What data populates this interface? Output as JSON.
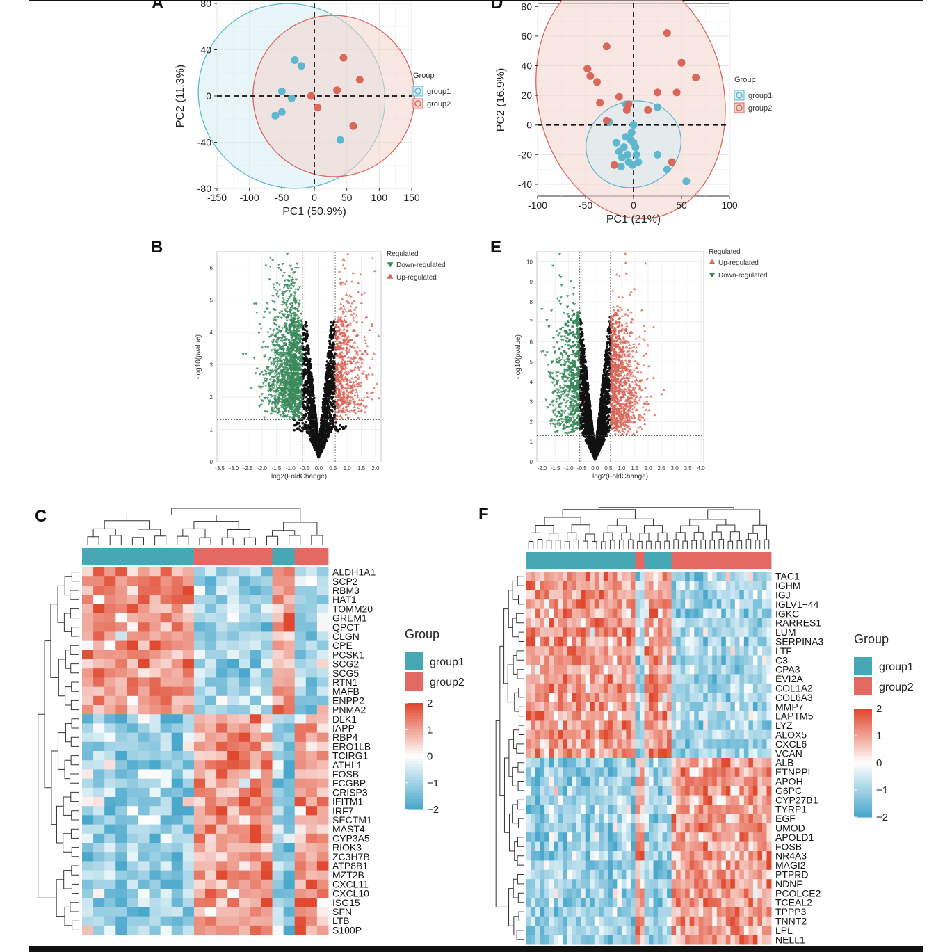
{
  "colors": {
    "group1": "#5fb7cf",
    "group2": "#d9675a",
    "group1_fill": "#d6eef4",
    "group2_fill": "#f4d4cd",
    "down": "#3a8a5c",
    "up": "#d9675a",
    "ns": "#111111",
    "heat_low": "#4aa8cc",
    "heat_mid": "#ffffff",
    "heat_high": "#e0492f",
    "bar_group1": "#47a8b5",
    "bar_group2": "#e26a63"
  },
  "chart_data": [
    {
      "panel": "A",
      "type": "scatter",
      "xlabel": "PC1 (50.9%)",
      "ylabel": "PC2 (11.3%)",
      "xlim": [
        -150,
        150
      ],
      "ylim": [
        -80,
        80
      ],
      "xticks": [
        "-150",
        "-100",
        "-50",
        "0",
        "50",
        "100",
        "150"
      ],
      "yticks": [
        "-80",
        "-40",
        "0",
        "40",
        "80"
      ],
      "legend": {
        "title": "Group",
        "entries": [
          "group1",
          "group2"
        ]
      },
      "series": [
        {
          "name": "group1",
          "points": [
            [
              -60,
              -17
            ],
            [
              -50,
              4
            ],
            [
              -50,
              -14
            ],
            [
              -35,
              -2
            ],
            [
              -30,
              31
            ],
            [
              -20,
              26
            ],
            [
              40,
              -38
            ]
          ]
        },
        {
          "name": "group2",
          "points": [
            [
              -5,
              0
            ],
            [
              5,
              -10
            ],
            [
              35,
              5
            ],
            [
              45,
              33
            ],
            [
              60,
              -26
            ],
            [
              70,
              14
            ]
          ]
        }
      ],
      "ellipses": [
        {
          "group": "group1",
          "center": [
            -35,
            0
          ],
          "rx": 140,
          "ry": 82,
          "angle": -52
        },
        {
          "group": "group2",
          "center": [
            30,
            0
          ],
          "rx": 124,
          "ry": 70,
          "angle": -58
        }
      ]
    },
    {
      "panel": "D",
      "type": "scatter",
      "xlabel": "PC1 (21%)",
      "ylabel": "PC2 (16.9%)",
      "xlim": [
        -100,
        100
      ],
      "ylim": [
        -48,
        82
      ],
      "xticks": [
        "-100",
        "-50",
        "0",
        "50",
        "100"
      ],
      "yticks": [
        "-40",
        "-20",
        "0",
        "20",
        "40",
        "60",
        "80"
      ],
      "legend": {
        "title": "Group",
        "entries": [
          "group1",
          "group2"
        ]
      },
      "series": [
        {
          "name": "group1",
          "points": [
            [
              -25,
              2
            ],
            [
              -18,
              -12
            ],
            [
              -15,
              -18
            ],
            [
              -12,
              -22
            ],
            [
              -10,
              -15
            ],
            [
              -8,
              -8
            ],
            [
              -6,
              -20
            ],
            [
              -5,
              -25
            ],
            [
              -3,
              -10
            ],
            [
              -2,
              -5
            ],
            [
              0,
              0
            ],
            [
              2,
              -15
            ],
            [
              3,
              -20
            ],
            [
              5,
              -25
            ],
            [
              -1,
              -27
            ],
            [
              -13,
              -28
            ],
            [
              25,
              -20
            ],
            [
              25,
              12
            ],
            [
              35,
              -30
            ],
            [
              55,
              -38
            ],
            [
              -8,
              14
            ],
            [
              0,
              -12
            ]
          ]
        },
        {
          "name": "group2",
          "points": [
            [
              -48,
              38
            ],
            [
              -45,
              33
            ],
            [
              -38,
              29
            ],
            [
              -35,
              15
            ],
            [
              -28,
              53
            ],
            [
              -20,
              -27
            ],
            [
              -15,
              19
            ],
            [
              -7,
              10
            ],
            [
              -5,
              14
            ],
            [
              15,
              10
            ],
            [
              25,
              22
            ],
            [
              35,
              62
            ],
            [
              45,
              22
            ],
            [
              50,
              42
            ],
            [
              65,
              32
            ],
            [
              40,
              -25
            ],
            [
              -28,
              3
            ]
          ]
        }
      ],
      "ellipses": [
        {
          "group": "group2",
          "center": [
            -3,
            20
          ],
          "rx": 97,
          "ry": 84,
          "angle": -12
        },
        {
          "group": "group1",
          "center": [
            0,
            -13
          ],
          "rx": 50,
          "ry": 29,
          "angle": -18
        }
      ]
    },
    {
      "panel": "B",
      "type": "scatter",
      "subtype": "volcano",
      "xlabel": "log2(FoldChange)",
      "ylabel": "-log10(pvalue)",
      "xlim": [
        -3.6,
        2.2
      ],
      "ylim": [
        0,
        6.5
      ],
      "xticks": [
        "-3.5",
        "-3.0",
        "-2.5",
        "-2.0",
        "-1.5",
        "-1.0",
        "-0.5",
        "0.0",
        "0.5",
        "1.0",
        "1.5",
        "2.0"
      ],
      "yticks": [
        "0",
        "1",
        "2",
        "3",
        "4",
        "5",
        "6"
      ],
      "threshold_x": [
        -0.58,
        0.58
      ],
      "threshold_y": 1.3,
      "legend": {
        "title": "Regulated",
        "entries": [
          "Down-regulated",
          "Up-regulated"
        ]
      },
      "shape_down": "triangle-down",
      "shape_up": "triangle-up",
      "point_counts": {
        "down": 1300,
        "up": 420,
        "ns": 1800
      }
    },
    {
      "panel": "E",
      "type": "scatter",
      "subtype": "volcano",
      "xlabel": "log2(FoldChange)",
      "ylabel": "-log10(pvalue)",
      "xlim": [
        -2.2,
        4.1
      ],
      "ylim": [
        0,
        10.5
      ],
      "xticks": [
        "-2.0",
        "-1.5",
        "-1.0",
        "-0.5",
        "0.0",
        "0.5",
        "1.0",
        "1.5",
        "2.0",
        "2.5",
        "3.0",
        "3.5",
        "4.0"
      ],
      "yticks": [
        "0",
        "1",
        "2",
        "3",
        "4",
        "5",
        "6",
        "7",
        "8",
        "9",
        "10"
      ],
      "threshold_x": [
        -0.58,
        0.58
      ],
      "threshold_y": 1.3,
      "legend": {
        "title": "Regulated",
        "entries": [
          "Up-regulated",
          "Down-regulated"
        ]
      },
      "shape_down": "triangle-down",
      "shape_up": "triangle-up",
      "point_counts": {
        "down": 350,
        "up": 650,
        "ns": 2600
      }
    },
    {
      "panel": "C",
      "type": "heatmap",
      "legend_title": "Group",
      "legend_entries": [
        "group1",
        "group2"
      ],
      "color_scale": {
        "min": -2,
        "max": 2,
        "ticks": [
          "2",
          "1",
          "0",
          "−1",
          "−2"
        ]
      },
      "column_groups": [
        "group1",
        "group1",
        "group1",
        "group1",
        "group1",
        "group1",
        "group1",
        "group1",
        "group1",
        "group1",
        "group2",
        "group2",
        "group2",
        "group2",
        "group2",
        "group2",
        "group2",
        "group1",
        "group1",
        "group2",
        "group2",
        "group2"
      ],
      "up_rows": 16,
      "genes": [
        "ALDH1A1",
        "SCP2",
        "RBM3",
        "HAT1",
        "TOMM20",
        "GREM1",
        "QPCT",
        "CLGN",
        "CPE",
        "PCSK1",
        "SCG2",
        "SCG5",
        "RTN1",
        "MAFB",
        "ENPP2",
        "PNMA2",
        "DLK1",
        "IAPP",
        "RBP4",
        "ERO1LB",
        "TCIRG1",
        "ATHL1",
        "FOSB",
        "FCGBP",
        "CRISP3",
        "IFITM1",
        "IRF7",
        "SECTM1",
        "MAST4",
        "CYP3A5",
        "RIOK3",
        "ZC3H7B",
        "ATP8B1",
        "MZT2B",
        "CXCL11",
        "CXCL10",
        "ISG15",
        "SFN",
        "LTB",
        "S100P"
      ]
    },
    {
      "panel": "F",
      "type": "heatmap",
      "legend_title": "Group",
      "legend_entries": [
        "group1",
        "group2"
      ],
      "color_scale": {
        "min": -2,
        "max": 2,
        "ticks": [
          "2",
          "1",
          "0",
          "−1",
          "−2"
        ]
      },
      "column_groups": [
        "group1",
        "group1",
        "group1",
        "group1",
        "group1",
        "group1",
        "group1",
        "group1",
        "group1",
        "group1",
        "group1",
        "group1",
        "group1",
        "group1",
        "group1",
        "group1",
        "group1",
        "group1",
        "group1",
        "group1",
        "group1",
        "group1",
        "group1",
        "group1",
        "group2",
        "group2",
        "group1",
        "group1",
        "group1",
        "group1",
        "group1",
        "group1",
        "group2",
        "group2",
        "group2",
        "group2",
        "group2",
        "group2",
        "group2",
        "group2",
        "group2",
        "group2",
        "group2",
        "group2",
        "group2",
        "group2",
        "group2",
        "group2",
        "group2",
        "group2",
        "group2",
        "group2",
        "group2",
        "group2"
      ],
      "up_rows": 20,
      "genes": [
        "TAC1",
        "IGHM",
        "IGJ",
        "IGLV1−44",
        "IGKC",
        "RARRES1",
        "LUM",
        "SERPINA3",
        "LTF",
        "C3",
        "CPA3",
        "EVI2A",
        "COL1A2",
        "COL6A3",
        "MMP7",
        "LAPTM5",
        "LYZ",
        "ALOX5",
        "CXCL6",
        "VCAN",
        "ALB",
        "ETNPPL",
        "APOH",
        "G6PC",
        "CYP27B1",
        "TYRP1",
        "EGF",
        "UMOD",
        "APOLD1",
        "FOSB",
        "NR4A3",
        "MAGI2",
        "PTPRD",
        "NDNF",
        "PCOLCE2",
        "TCEAL2",
        "TPPP3",
        "TNNT2",
        "LPL",
        "NELL1"
      ]
    }
  ]
}
